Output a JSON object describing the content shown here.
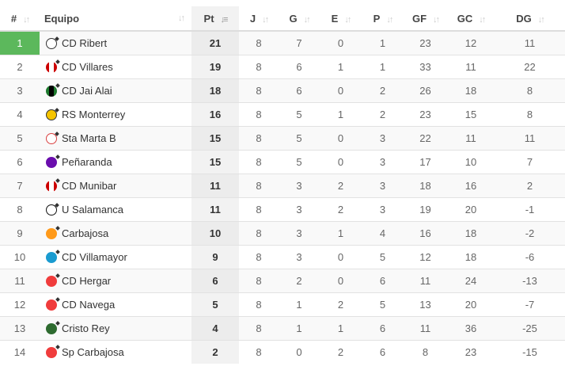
{
  "headers": {
    "pos": "#",
    "team": "Equipo",
    "pt": "Pt",
    "j": "J",
    "g": "G",
    "e": "E",
    "p": "P",
    "gf": "GF",
    "gc": "GC",
    "dg": "DG"
  },
  "leader_color": "#5cb85c",
  "rows": [
    {
      "pos": "1",
      "team": "CD Ribert",
      "crest": {
        "style": "ring",
        "color": "#333333"
      },
      "pt": "21",
      "j": "8",
      "g": "7",
      "e": "0",
      "p": "1",
      "gf": "23",
      "gc": "12",
      "dg": "11"
    },
    {
      "pos": "2",
      "team": "CD Villares",
      "crest": {
        "style": "stripe",
        "color": "#cc0000",
        "stripe": "#ffffff"
      },
      "pt": "19",
      "j": "8",
      "g": "6",
      "e": "1",
      "p": "1",
      "gf": "33",
      "gc": "11",
      "dg": "22"
    },
    {
      "pos": "3",
      "team": "CD Jai Alai",
      "crest": {
        "style": "stripe",
        "color": "#1e7a2e",
        "stripe": "#000000"
      },
      "pt": "18",
      "j": "8",
      "g": "6",
      "e": "0",
      "p": "2",
      "gf": "26",
      "gc": "18",
      "dg": "8"
    },
    {
      "pos": "4",
      "team": "RS Monterrey",
      "crest": {
        "style": "fill",
        "color": "#f5c400",
        "border": "#333333"
      },
      "pt": "16",
      "j": "8",
      "g": "5",
      "e": "1",
      "p": "2",
      "gf": "23",
      "gc": "15",
      "dg": "8"
    },
    {
      "pos": "5",
      "team": "Sta Marta B",
      "crest": {
        "style": "ring",
        "color": "#d94040"
      },
      "pt": "15",
      "j": "8",
      "g": "5",
      "e": "0",
      "p": "3",
      "gf": "22",
      "gc": "11",
      "dg": "11"
    },
    {
      "pos": "6",
      "team": "Peñaranda",
      "crest": {
        "style": "fill",
        "color": "#6a0dad"
      },
      "pt": "15",
      "j": "8",
      "g": "5",
      "e": "0",
      "p": "3",
      "gf": "17",
      "gc": "10",
      "dg": "7"
    },
    {
      "pos": "7",
      "team": "CD Munibar",
      "crest": {
        "style": "stripe",
        "color": "#cc0000",
        "stripe": "#ffffff"
      },
      "pt": "11",
      "j": "8",
      "g": "3",
      "e": "2",
      "p": "3",
      "gf": "18",
      "gc": "16",
      "dg": "2"
    },
    {
      "pos": "8",
      "team": "U Salamanca",
      "crest": {
        "style": "ring",
        "color": "#111111"
      },
      "pt": "11",
      "j": "8",
      "g": "3",
      "e": "2",
      "p": "3",
      "gf": "19",
      "gc": "20",
      "dg": "-1"
    },
    {
      "pos": "9",
      "team": "Carbajosa",
      "crest": {
        "style": "fill",
        "color": "#ff9a1a"
      },
      "pt": "10",
      "j": "8",
      "g": "3",
      "e": "1",
      "p": "4",
      "gf": "16",
      "gc": "18",
      "dg": "-2"
    },
    {
      "pos": "10",
      "team": "CD Villamayor",
      "crest": {
        "style": "fill",
        "color": "#1a9bd0"
      },
      "pt": "9",
      "j": "8",
      "g": "3",
      "e": "0",
      "p": "5",
      "gf": "12",
      "gc": "18",
      "dg": "-6"
    },
    {
      "pos": "11",
      "team": "CD Hergar",
      "crest": {
        "style": "fill",
        "color": "#f03c3c"
      },
      "pt": "6",
      "j": "8",
      "g": "2",
      "e": "0",
      "p": "6",
      "gf": "11",
      "gc": "24",
      "dg": "-13"
    },
    {
      "pos": "12",
      "team": "CD Navega",
      "crest": {
        "style": "fill",
        "color": "#f03c3c"
      },
      "pt": "5",
      "j": "8",
      "g": "1",
      "e": "2",
      "p": "5",
      "gf": "13",
      "gc": "20",
      "dg": "-7"
    },
    {
      "pos": "13",
      "team": "Cristo Rey",
      "crest": {
        "style": "fill",
        "color": "#2e6b30"
      },
      "pt": "4",
      "j": "8",
      "g": "1",
      "e": "1",
      "p": "6",
      "gf": "11",
      "gc": "36",
      "dg": "-25"
    },
    {
      "pos": "14",
      "team": "Sp Carbajosa",
      "crest": {
        "style": "fill",
        "color": "#f03c3c"
      },
      "pt": "2",
      "j": "8",
      "g": "0",
      "e": "2",
      "p": "6",
      "gf": "8",
      "gc": "23",
      "dg": "-15"
    }
  ]
}
